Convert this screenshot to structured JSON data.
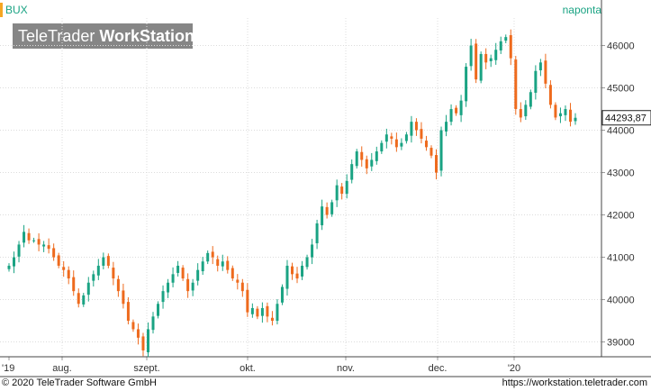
{
  "header": {
    "symbol": "BUX",
    "interval": "naponta",
    "logo_regular": "TeleTrader ",
    "logo_bold": "WorkStation"
  },
  "footer": {
    "copyright": "© 2020 TeleTrader Software GmbH",
    "url": "https://workstation.teletrader.com"
  },
  "colors": {
    "up": "#1aa383",
    "down": "#ee6a1d",
    "accent": "#1aa383",
    "marker": "#f5a623",
    "grid": "#dcdcdc"
  },
  "chart_data": {
    "type": "candlestick",
    "x_tick_labels": [
      "'19",
      "aug.",
      "szept.",
      "okt.",
      "nov.",
      "dec.",
      "'20"
    ],
    "y_ticks": [
      39000,
      40000,
      41000,
      42000,
      43000,
      44000,
      45000,
      46000
    ],
    "ylim": [
      38650,
      46650
    ],
    "last_value_label": "44293,87",
    "last_value": 44293.87,
    "grid": true,
    "close": [
      40800,
      41000,
      41300,
      41600,
      41400,
      41400,
      41300,
      41300,
      41200,
      41000,
      40800,
      40700,
      40500,
      40200,
      39900,
      40100,
      40400,
      40600,
      40800,
      41000,
      40800,
      40500,
      40200,
      39900,
      39500,
      39300,
      39100,
      38800,
      39300,
      39600,
      39900,
      40200,
      40400,
      40600,
      40800,
      40500,
      40200,
      40400,
      40700,
      40900,
      41100,
      41000,
      40800,
      40900,
      40700,
      40500,
      40400,
      40200,
      39700,
      39800,
      39600,
      39800,
      39600,
      39500,
      39900,
      40300,
      40800,
      40600,
      40500,
      40800,
      41000,
      41300,
      41800,
      42200,
      42000,
      42300,
      42700,
      42500,
      42800,
      43200,
      43500,
      43300,
      43100,
      43300,
      43500,
      43700,
      43900,
      43800,
      43600,
      43700,
      43900,
      44200,
      44000,
      43800,
      43600,
      43400,
      43000,
      44000,
      44200,
      44500,
      44400,
      44700,
      45500,
      46000,
      45200,
      45800,
      45600,
      45700,
      45900,
      46100,
      46200,
      45700,
      44500,
      44300,
      44600,
      44900,
      45400,
      45600,
      45100,
      44600,
      44300,
      44400,
      44500,
      44200,
      44293.87
    ],
    "series_note_color": ""
  }
}
